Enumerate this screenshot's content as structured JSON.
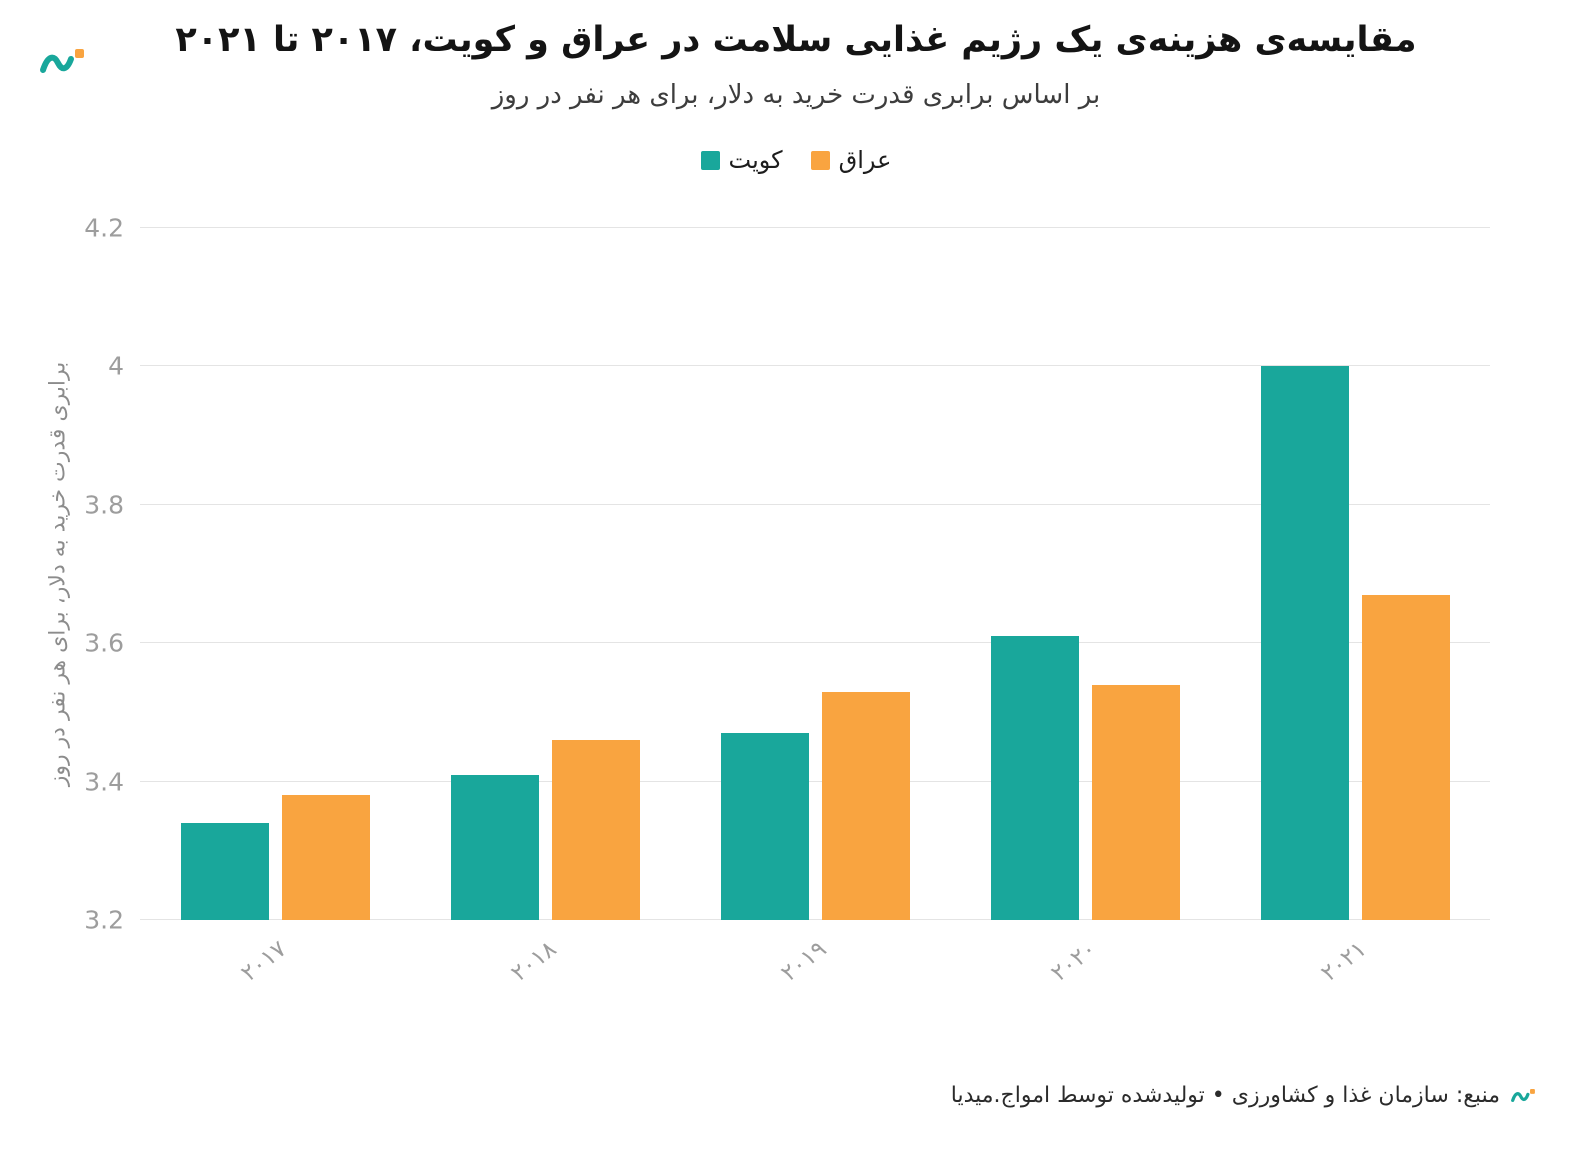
{
  "header": {
    "title": "مقایسه‌ی هزینه‌ی یک رژیم غذایی سلامت در عراق و کویت، ۲۰۱۷ تا ۲۰۲۱",
    "subtitle": "بر اساس برابری قدرت خرید به دلار، برای هر نفر در روز"
  },
  "brand": {
    "teal": "#19A79B",
    "orange": "#F9A440"
  },
  "chart_data": {
    "type": "bar",
    "categories": [
      "۲۰۱۷",
      "۲۰۱۸",
      "۲۰۱۹",
      "۲۰۲۰",
      "۲۰۲۱"
    ],
    "series": [
      {
        "id": "kuwait",
        "name": "کویت",
        "color": "#19A79B",
        "values": [
          3.34,
          3.41,
          3.47,
          3.61,
          4.0
        ]
      },
      {
        "id": "iraq",
        "name": "عراق",
        "color": "#F9A440",
        "values": [
          3.38,
          3.46,
          3.53,
          3.54,
          3.67
        ]
      }
    ],
    "title": "مقایسه‌ی هزینه‌ی یک رژیم غذایی سلامت در عراق و کویت، ۲۰۱۷ تا ۲۰۲۱",
    "subtitle": "بر اساس برابری قدرت خرید به دلار، برای هر نفر در روز",
    "xlabel": "",
    "ylabel": "برابری قدرت خرید به دلار، برای هر نفر در روز",
    "ylim": [
      3.2,
      4.2
    ],
    "yticks": [
      3.2,
      3.4,
      3.6,
      3.8,
      4,
      4.2
    ],
    "grid": true,
    "legend_position": "top"
  },
  "footer": {
    "source": "منبع: سازمان غذا و کشاورزی • تولیدشده توسط امواج.میدیا"
  }
}
